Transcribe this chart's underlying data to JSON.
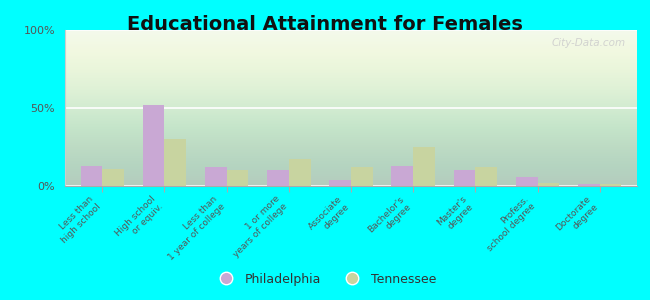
{
  "title": "Educational Attainment for Females",
  "categories": [
    "Less than\nhigh school",
    "High school\nor equiv.",
    "Less than\n1 year of college",
    "1 or more\nyears of college",
    "Associate\ndegree",
    "Bachelor's\ndegree",
    "Master's\ndegree",
    "Profess.\nschool degree",
    "Doctorate\ndegree"
  ],
  "philadelphia": [
    13,
    52,
    12,
    10,
    4,
    13,
    10,
    6,
    1
  ],
  "tennessee": [
    11,
    30,
    10,
    17,
    12,
    25,
    12,
    2,
    1
  ],
  "philadelphia_color": "#c9a8d4",
  "tennessee_color": "#c8d4a0",
  "bg_color": "#00ffff",
  "ylim": [
    0,
    100
  ],
  "yticks": [
    0,
    50,
    100
  ],
  "ytick_labels": [
    "0%",
    "50%",
    "100%"
  ],
  "bar_width": 0.35,
  "title_fontsize": 14,
  "legend_labels": [
    "Philadelphia",
    "Tennessee"
  ],
  "watermark": "City-Data.com"
}
